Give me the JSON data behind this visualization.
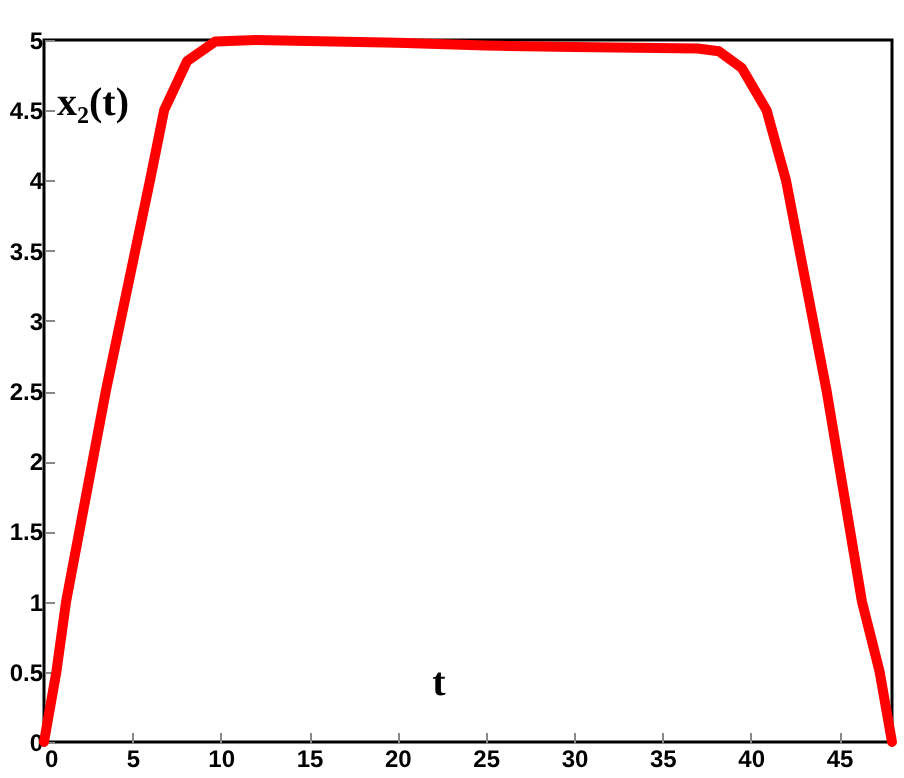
{
  "chart_data": {
    "type": "line",
    "xlabel": "t",
    "ylabel": "x₂(t)",
    "x": [
      0,
      0.7,
      1.25,
      3.5,
      6,
      6.8,
      8.1,
      9.7,
      12,
      20,
      25,
      30,
      37,
      38.2,
      39.5,
      40.9,
      42,
      44.3,
      46.3,
      47.3,
      48
    ],
    "series": [
      {
        "color": "#ff0000",
        "values": [
          0,
          0.5,
          1,
          2.5,
          4,
          4.5,
          4.85,
          4.99,
          5,
          4.98,
          4.96,
          4.95,
          4.94,
          4.92,
          4.8,
          4.5,
          4,
          2.5,
          1,
          0.5,
          0
        ]
      }
    ],
    "xlim": [
      0,
      48
    ],
    "ylim": [
      0,
      5
    ],
    "xticks": [
      0,
      5,
      10,
      15,
      20,
      25,
      30,
      35,
      40,
      45
    ],
    "yticks": [
      0,
      0.5,
      1,
      1.5,
      2,
      2.5,
      3,
      3.5,
      4,
      4.5,
      5
    ],
    "grid": false,
    "marker": "none",
    "line_style": "solid"
  }
}
